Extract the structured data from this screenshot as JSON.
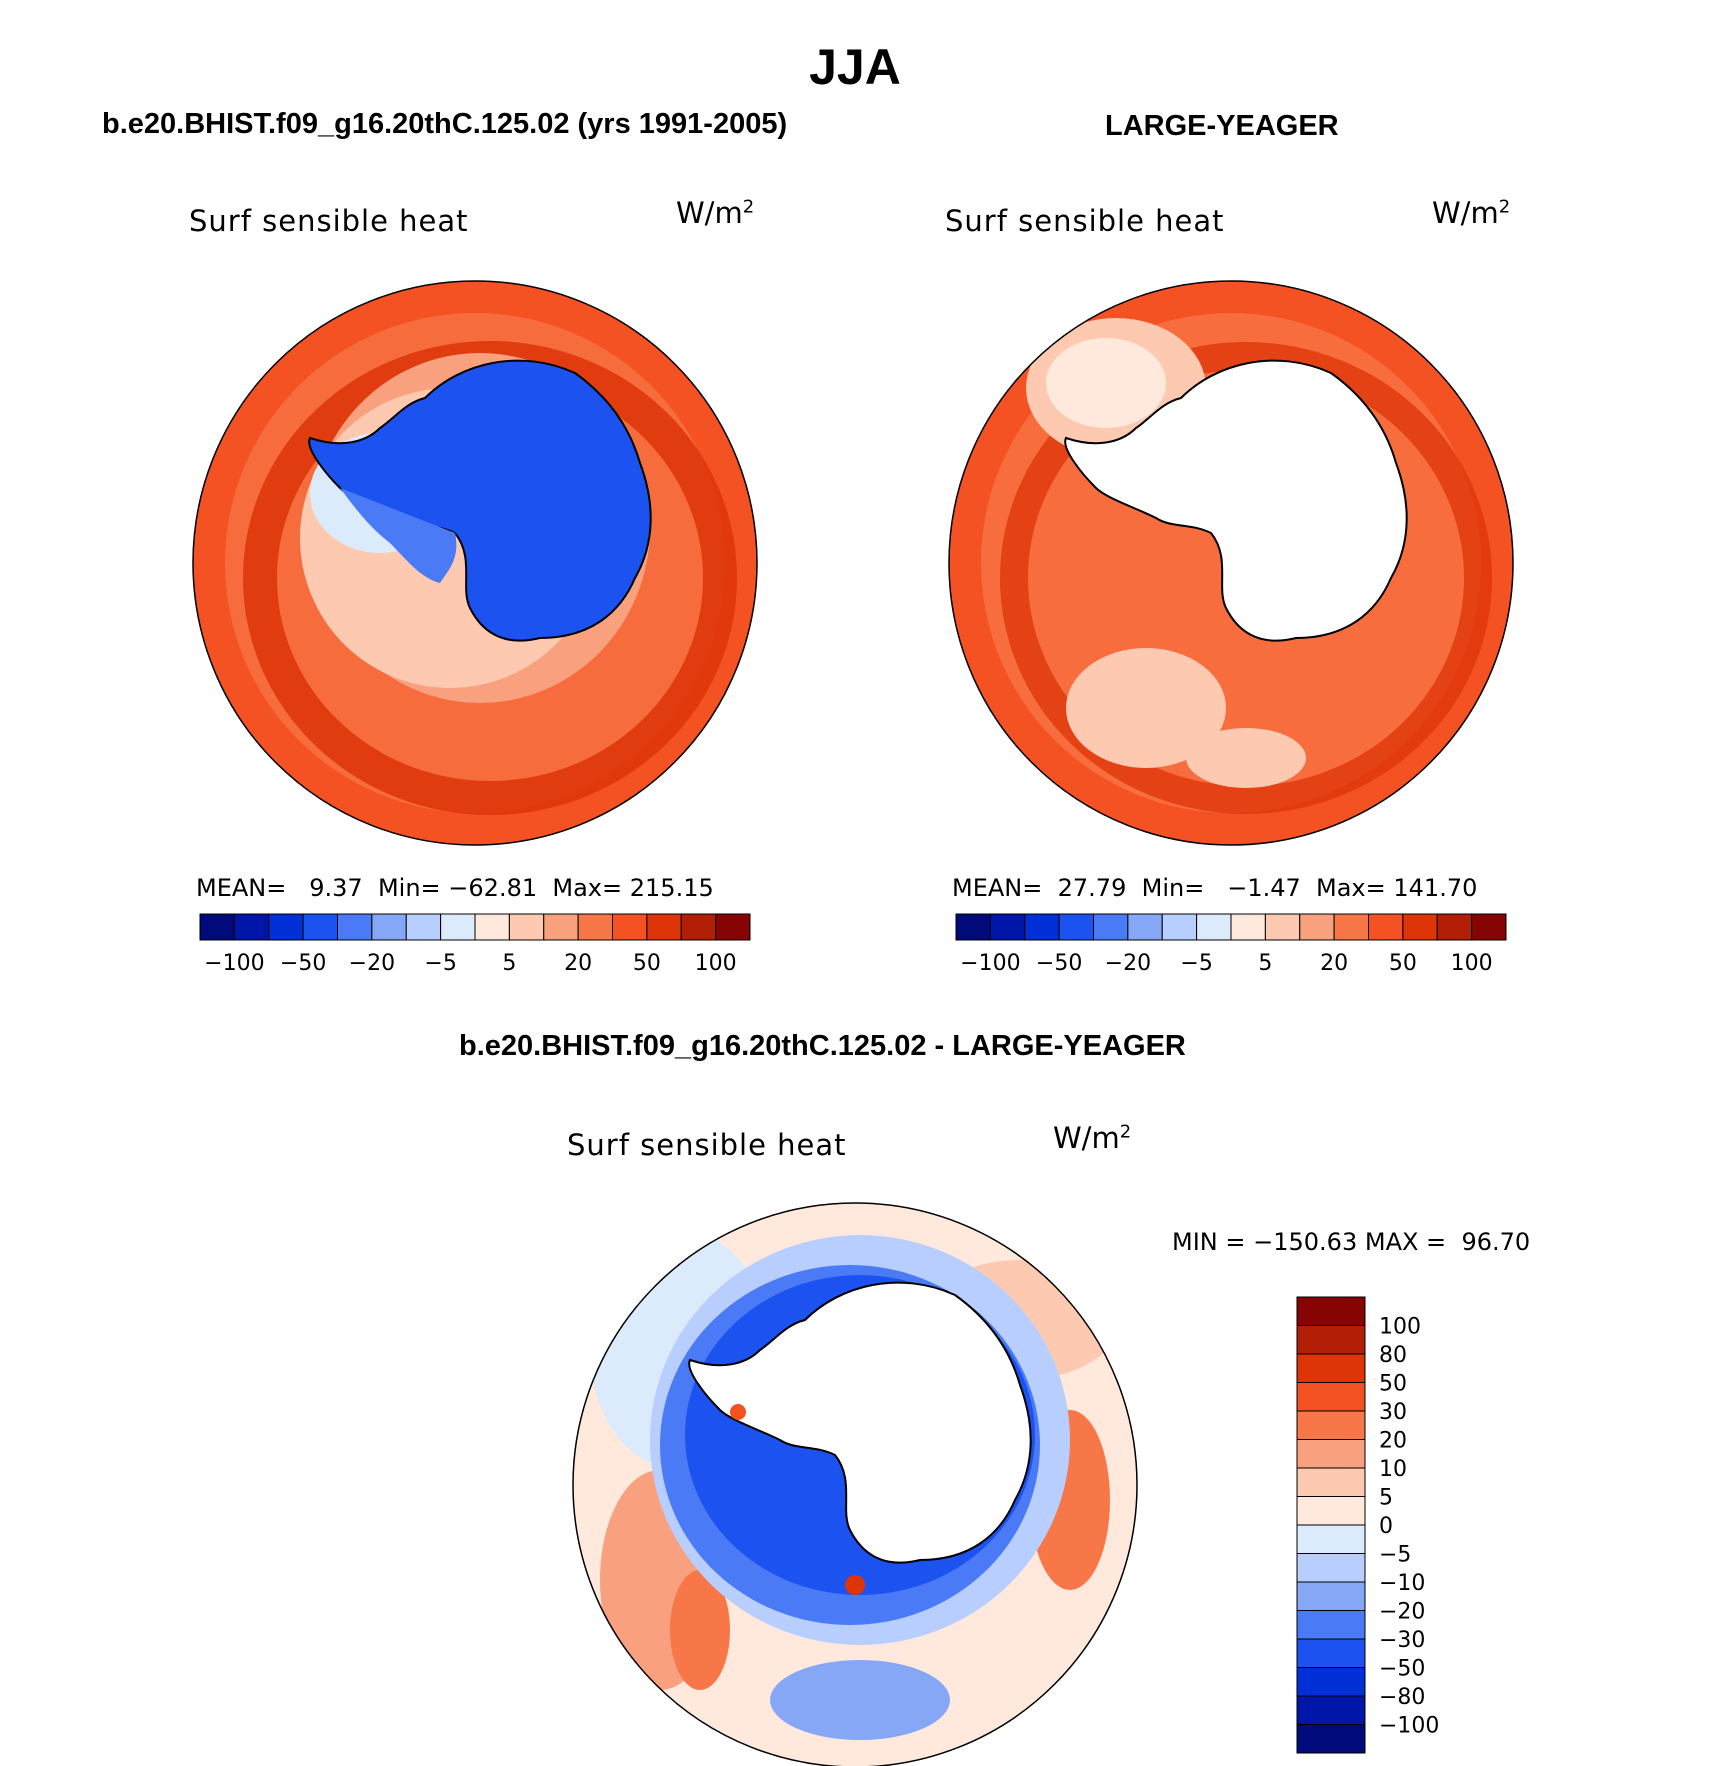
{
  "title": "JJA",
  "panels": [
    {
      "title": "b.e20.BHIST.f09_g16.20thC.125.02 (yrs 1991-2005)",
      "variable": "Surf sensible heat",
      "units": "W/m",
      "units_sup": "2",
      "stats": {
        "mean_label": "MEAN=",
        "mean": "9.37",
        "min_label": "Min=",
        "min": "−62.81",
        "max_label": "Max=",
        "max": "215.15"
      }
    },
    {
      "title": "LARGE-YEAGER",
      "variable": "Surf sensible heat",
      "units": "W/m",
      "units_sup": "2",
      "stats": {
        "mean_label": "MEAN=",
        "mean": "27.79",
        "min_label": "Min=",
        "min": "−1.47",
        "max_label": "Max=",
        "max": "141.70"
      }
    }
  ],
  "diff_panel": {
    "title": "b.e20.BHIST.f09_g16.20thC.125.02 - LARGE-YEAGER",
    "variable": "Surf sensible heat",
    "units": "W/m",
    "units_sup": "2",
    "stats": {
      "min_label": "MIN =",
      "min": "−150.63",
      "max_label": "MAX =",
      "max": "96.70"
    }
  },
  "horizontal_colorbar": {
    "colors": [
      "#000a7a",
      "#0016a8",
      "#0030d6",
      "#1c52f0",
      "#4a7af6",
      "#86a6f6",
      "#b8ceff",
      "#dcebfb",
      "#ffe9dc",
      "#fdc9b0",
      "#f9a07e",
      "#f87748",
      "#f45222",
      "#dd3408",
      "#b31e06",
      "#860404"
    ],
    "tick_labels": [
      "−100",
      "−50",
      "−20",
      "−5",
      "5",
      "20",
      "50",
      "100"
    ]
  },
  "vertical_colorbar": {
    "colors_top_to_bottom": [
      "#860404",
      "#b31e06",
      "#dd3408",
      "#f45222",
      "#f87748",
      "#f9a07e",
      "#fdc9b0",
      "#ffe9dc",
      "#dcebfb",
      "#b8ceff",
      "#86a6f6",
      "#4a7af6",
      "#1c52f0",
      "#0030d6",
      "#0016a8",
      "#000a7a"
    ],
    "tick_labels": [
      "100",
      "80",
      "50",
      "30",
      "20",
      "10",
      "5",
      "0",
      "−5",
      "−10",
      "−20",
      "−30",
      "−50",
      "−80",
      "−100"
    ]
  },
  "map_colors": {
    "ocean_outer": "#f45222",
    "ocean_band_dark": "#dd3408",
    "ocean_mid": "#f87748",
    "ocean_light": "#f9a07e",
    "ocean_pale": "#fdc9b0",
    "ice_pale": "#dcebfb",
    "continent_blue": "#1c52f0",
    "continent_empty": "#ffffff",
    "diff_blue_band": "#1c52f0",
    "diff_blue_mid": "#4a7af6",
    "diff_blue_light": "#86a6f6",
    "diff_pale": "#dcebfb",
    "diff_peach": "#ffe9dc",
    "diff_orange": "#f87748"
  }
}
